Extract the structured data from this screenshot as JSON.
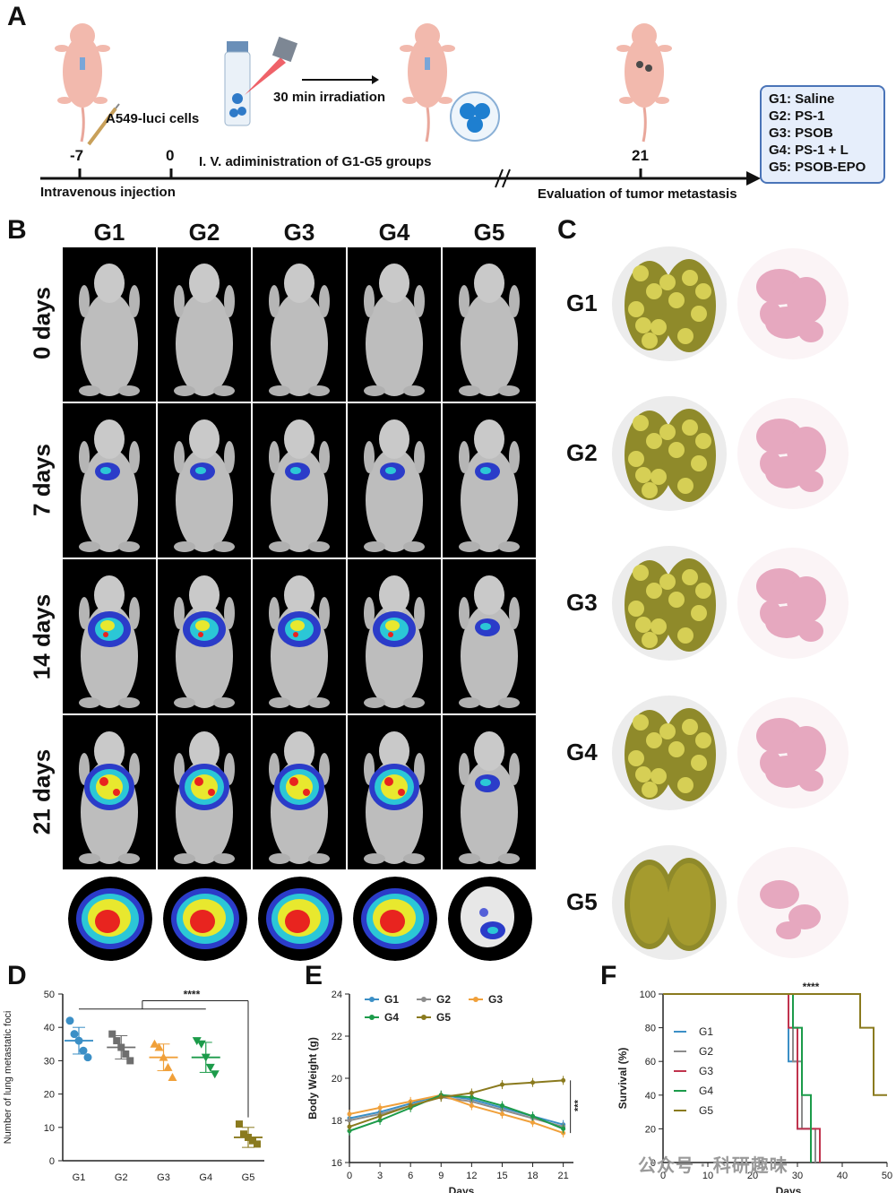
{
  "panelA": {
    "label": "A",
    "day_neg7": "-7",
    "day_0": "0",
    "day_21": "21",
    "cells_label": "A549-luci cells",
    "irradiation_label": "30 min irradiation",
    "iv_label": "I. V. adiministration of G1-G5 groups",
    "injection_label": "Intravenous injection",
    "evaluation_label": "Evaluation of tumor metastasis",
    "legend": [
      "G1: Saline",
      "G2: PS-1",
      "G3: PSOB",
      "G4: PS-1 + L",
      "G5: PSOB-EPO"
    ]
  },
  "panelB": {
    "label": "B",
    "groups": [
      "G1",
      "G2",
      "G3",
      "G4",
      "G5"
    ],
    "timepoints": [
      "0 days",
      "7 days",
      "14 days",
      "21 days"
    ]
  },
  "panelC": {
    "label": "C",
    "groups": [
      "G1",
      "G2",
      "G3",
      "G4",
      "G5"
    ]
  },
  "chart_data": [
    {
      "panel": "D",
      "type": "scatter",
      "title": "",
      "ylabel": "Number of lung metastatic foci",
      "xlabel": "",
      "categories": [
        "G1",
        "G2",
        "G3",
        "G4",
        "G5"
      ],
      "ylim": [
        0,
        50
      ],
      "yticks": [
        "0",
        "10",
        "20",
        "30",
        "40",
        "50"
      ],
      "means": [
        36,
        34,
        31,
        31,
        7
      ],
      "errors": [
        4,
        3.5,
        4,
        4.5,
        3
      ],
      "points": [
        [
          42,
          38,
          36,
          33,
          31
        ],
        [
          38,
          36,
          34,
          32,
          30
        ],
        [
          35,
          34,
          31,
          28,
          25
        ],
        [
          36,
          35,
          31,
          28,
          26
        ],
        [
          11,
          8,
          7,
          6,
          5
        ]
      ],
      "colors": [
        "#3b8fc6",
        "#6e6e6e",
        "#f0a03a",
        "#1c9b4a",
        "#8a7a1e"
      ],
      "significance": "****"
    },
    {
      "panel": "E",
      "type": "line",
      "title": "",
      "ylabel": "Body Weight (g)",
      "xlabel": "Days",
      "x": [
        0,
        3,
        6,
        9,
        12,
        15,
        18,
        21
      ],
      "xticks": [
        "0",
        "3",
        "6",
        "9",
        "12",
        "15",
        "18",
        "21"
      ],
      "ylim": [
        16,
        24
      ],
      "yticks": [
        "16",
        "18",
        "20",
        "22",
        "24"
      ],
      "series": [
        {
          "name": "G1",
          "color": "#3b8fc6",
          "values": [
            18.1,
            18.4,
            18.8,
            19.2,
            19.0,
            18.6,
            18.2,
            17.8
          ]
        },
        {
          "name": "G2",
          "color": "#8c8c8c",
          "values": [
            18.0,
            18.3,
            18.7,
            19.1,
            18.9,
            18.5,
            18.1,
            17.7
          ]
        },
        {
          "name": "G3",
          "color": "#f0a03a",
          "values": [
            18.3,
            18.6,
            18.9,
            19.2,
            18.7,
            18.3,
            17.9,
            17.4
          ]
        },
        {
          "name": "G4",
          "color": "#1c9b4a",
          "values": [
            17.5,
            18.0,
            18.6,
            19.2,
            19.1,
            18.7,
            18.2,
            17.6
          ]
        },
        {
          "name": "G5",
          "color": "#8a7a1e",
          "values": [
            17.7,
            18.2,
            18.7,
            19.1,
            19.3,
            19.7,
            19.8,
            19.9
          ]
        }
      ],
      "significance": "***"
    },
    {
      "panel": "F",
      "type": "line",
      "title": "",
      "ylabel": "Survival (%)",
      "xlabel": "Days",
      "xlim": [
        0,
        50
      ],
      "xticks": [
        "0",
        "10",
        "20",
        "30",
        "40",
        "50"
      ],
      "ylim": [
        0,
        100
      ],
      "yticks": [
        "0",
        "20",
        "40",
        "60",
        "80",
        "100"
      ],
      "series": [
        {
          "name": "G1",
          "color": "#3b8fc6",
          "steps": [
            [
              0,
              100
            ],
            [
              28,
              100
            ],
            [
              28,
              60
            ],
            [
              30,
              60
            ],
            [
              30,
              20
            ],
            [
              33,
              20
            ],
            [
              33,
              0
            ]
          ]
        },
        {
          "name": "G2",
          "color": "#8c8c8c",
          "steps": [
            [
              0,
              100
            ],
            [
              29,
              100
            ],
            [
              29,
              60
            ],
            [
              31,
              60
            ],
            [
              31,
              20
            ],
            [
              34,
              20
            ],
            [
              34,
              0
            ]
          ]
        },
        {
          "name": "G3",
          "color": "#c0334d",
          "steps": [
            [
              0,
              100
            ],
            [
              28,
              100
            ],
            [
              28,
              80
            ],
            [
              30,
              80
            ],
            [
              30,
              20
            ],
            [
              35,
              20
            ],
            [
              35,
              0
            ]
          ]
        },
        {
          "name": "G4",
          "color": "#1c9b4a",
          "steps": [
            [
              0,
              100
            ],
            [
              29,
              100
            ],
            [
              29,
              80
            ],
            [
              31,
              80
            ],
            [
              31,
              40
            ],
            [
              33,
              40
            ],
            [
              33,
              0
            ]
          ]
        },
        {
          "name": "G5",
          "color": "#8a7a1e",
          "steps": [
            [
              0,
              100
            ],
            [
              44,
              100
            ],
            [
              44,
              80
            ],
            [
              47,
              80
            ],
            [
              47,
              40
            ],
            [
              50,
              40
            ]
          ]
        }
      ],
      "significance": "****"
    }
  ],
  "watermark": "公众号 · 科研趣味"
}
